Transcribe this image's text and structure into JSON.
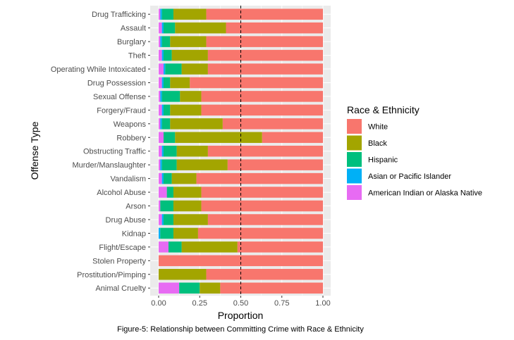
{
  "chart_data": {
    "type": "bar",
    "orientation": "horizontal",
    "stacked": true,
    "xlabel": "Proportion",
    "ylabel": "Offense Type",
    "xlim": [
      0,
      1
    ],
    "x_ticks": [
      "0.00",
      "0.25",
      "0.50",
      "0.75",
      "1.00"
    ],
    "x_tick_values": [
      0,
      0.25,
      0.5,
      0.75,
      1.0
    ],
    "reference_line": {
      "x": 0.5,
      "style": "dashed",
      "color": "#000000"
    },
    "caption": "Figure-5: Relationship between Committing Crime with Race & Ethnicity",
    "legend": {
      "title": "Race & Ethnicity",
      "placement": "right",
      "entries": [
        {
          "name": "White",
          "color": "#F8766D"
        },
        {
          "name": "Black",
          "color": "#A3A500"
        },
        {
          "name": "Hispanic",
          "color": "#00BF7D"
        },
        {
          "name": "Asian or Pacific Islander",
          "color": "#00B0F6"
        },
        {
          "name": "American Indian or Alaska Native",
          "color": "#E76BF3"
        }
      ]
    },
    "stack_order": [
      "American Indian or Alaska Native",
      "Asian or Pacific Islander",
      "Hispanic",
      "Black",
      "White"
    ],
    "categories": [
      "Drug Trafficking",
      "Assault",
      "Burglary",
      "Theft",
      "Operating While Intoxicated",
      "Drug Possession",
      "Sexual Offense",
      "Forgery/Fraud",
      "Weapons",
      "Robbery",
      "Obstructing Traffic",
      "Murder/Manslaughter",
      "Vandalism",
      "Alcohol Abuse",
      "Arson",
      "Drug Abuse",
      "Kidnap",
      "Flight/Escape",
      "Stolen Property",
      "Prostitution/Pimping",
      "Animal Cruelty"
    ],
    "series": [
      {
        "name": "American Indian or Alaska Native",
        "values": [
          0.01,
          0.02,
          0.01,
          0.02,
          0.03,
          0.02,
          0.01,
          0.02,
          0.01,
          0.03,
          0.02,
          0.01,
          0.02,
          0.05,
          0.01,
          0.02,
          0.0,
          0.06,
          0.0,
          0.0,
          0.125
        ]
      },
      {
        "name": "Asian or Pacific Islander",
        "values": [
          0.01,
          0.01,
          0.01,
          0.01,
          0.01,
          0.01,
          0.01,
          0.01,
          0.01,
          0.0,
          0.01,
          0.01,
          0.01,
          0.0,
          0.0,
          0.01,
          0.01,
          0.0,
          0.0,
          0.0,
          0.0
        ]
      },
      {
        "name": "Hispanic",
        "values": [
          0.07,
          0.07,
          0.05,
          0.05,
          0.1,
          0.04,
          0.11,
          0.04,
          0.05,
          0.07,
          0.08,
          0.09,
          0.05,
          0.04,
          0.08,
          0.06,
          0.08,
          0.08,
          0.0,
          0.0,
          0.125
        ]
      },
      {
        "name": "Black",
        "values": [
          0.2,
          0.31,
          0.22,
          0.22,
          0.16,
          0.12,
          0.13,
          0.19,
          0.32,
          0.53,
          0.19,
          0.31,
          0.15,
          0.17,
          0.17,
          0.21,
          0.15,
          0.34,
          0.0,
          0.29,
          0.125
        ]
      },
      {
        "name": "White",
        "values": [
          0.71,
          0.59,
          0.71,
          0.7,
          0.7,
          0.81,
          0.74,
          0.74,
          0.61,
          0.37,
          0.7,
          0.58,
          0.77,
          0.74,
          0.74,
          0.7,
          0.76,
          0.52,
          1.0,
          0.71,
          0.625
        ]
      }
    ]
  }
}
